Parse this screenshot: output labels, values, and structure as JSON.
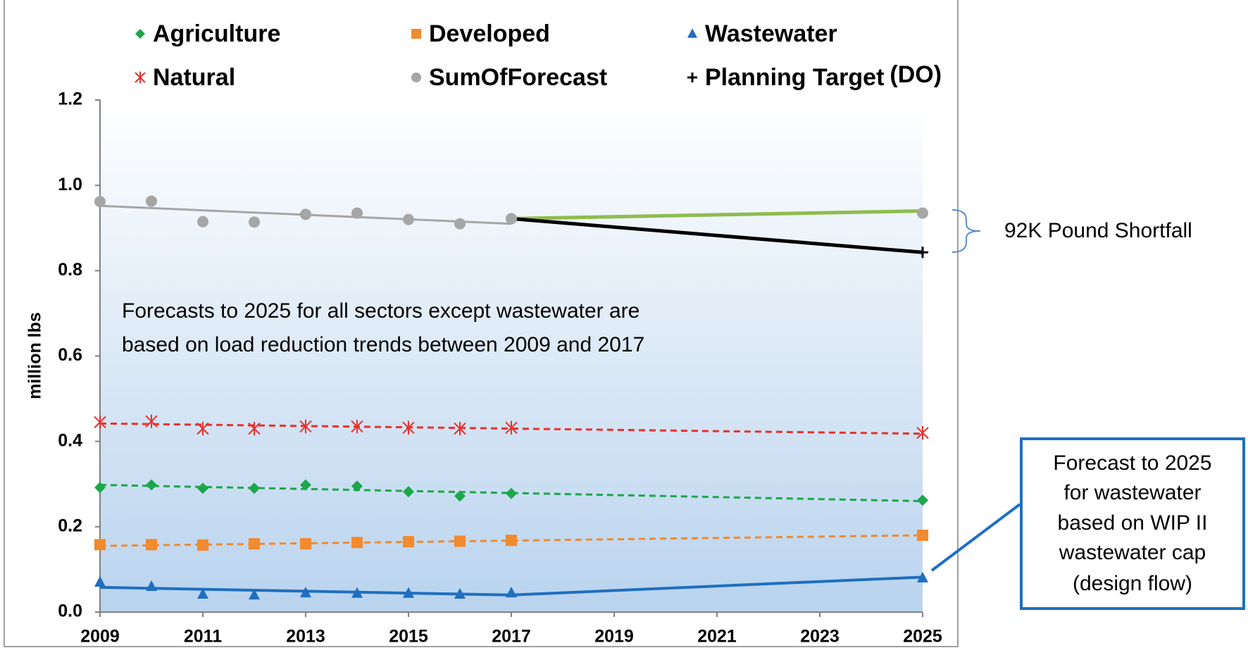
{
  "chart_data": {
    "type": "line",
    "y_label": "million lbs",
    "xlim": [
      2009,
      2025
    ],
    "xticks": [
      2009,
      2011,
      2013,
      2015,
      2017,
      2019,
      2021,
      2023,
      2025
    ],
    "ylim": [
      0,
      1.2
    ],
    "yticks": [
      {
        "value": 0,
        "label": "0.0"
      },
      {
        "value": 0.2,
        "label": "0.2"
      },
      {
        "value": 0.4,
        "label": "0.4"
      },
      {
        "value": 0.6,
        "label": "0.6"
      },
      {
        "value": 0.8,
        "label": "0.8"
      },
      {
        "value": 1.0,
        "label": "1.0"
      },
      {
        "value": 1.2,
        "label": "1.2"
      }
    ],
    "series": [
      {
        "name": "Agriculture",
        "color": "#1aa84a",
        "marker": "diamond",
        "x": [
          2009,
          2010,
          2011,
          2012,
          2013,
          2014,
          2015,
          2016,
          2017,
          2025
        ],
        "values": [
          0.292,
          0.298,
          0.29,
          0.29,
          0.298,
          0.295,
          0.282,
          0.272,
          0.278,
          0.262
        ]
      },
      {
        "name": "Developed",
        "color": "#f28a2e",
        "marker": "square",
        "x": [
          2009,
          2010,
          2011,
          2012,
          2013,
          2014,
          2015,
          2016,
          2017,
          2025
        ],
        "values": [
          0.158,
          0.158,
          0.157,
          0.16,
          0.16,
          0.163,
          0.165,
          0.166,
          0.168,
          0.18
        ]
      },
      {
        "name": "Wastewater",
        "color": "#1f6fc0",
        "marker": "triangle",
        "x": [
          2009,
          2010,
          2011,
          2012,
          2013,
          2014,
          2015,
          2016,
          2017,
          2025
        ],
        "values": [
          0.07,
          0.06,
          0.042,
          0.04,
          0.045,
          0.044,
          0.044,
          0.042,
          0.045,
          0.08
        ]
      },
      {
        "name": "Natural",
        "color": "#e8312b",
        "marker": "star",
        "x": [
          2009,
          2010,
          2011,
          2012,
          2013,
          2014,
          2015,
          2016,
          2017,
          2025
        ],
        "values": [
          0.445,
          0.447,
          0.43,
          0.43,
          0.435,
          0.435,
          0.432,
          0.43,
          0.432,
          0.42
        ]
      },
      {
        "name": "SumOfForecast",
        "color": "#a6a6a6",
        "marker": "circle",
        "x": [
          2009,
          2010,
          2011,
          2012,
          2013,
          2014,
          2015,
          2016,
          2017,
          2025
        ],
        "values": [
          0.962,
          0.963,
          0.915,
          0.914,
          0.932,
          0.935,
          0.92,
          0.91,
          0.922,
          0.935
        ]
      },
      {
        "name": "Planning Target",
        "color": "#000000",
        "marker": "plus",
        "x": [
          2025
        ],
        "values": [
          0.843
        ]
      }
    ],
    "trend_lines": [
      {
        "color": "#a6a6a6",
        "dashed": false,
        "width": 3,
        "x": [
          2009,
          2017
        ],
        "values": [
          0.952,
          0.91
        ]
      },
      {
        "color": "#8fbc4f",
        "dashed": false,
        "width": 5,
        "x": [
          2017,
          2025
        ],
        "values": [
          0.922,
          0.94
        ]
      },
      {
        "color": "#000000",
        "dashed": false,
        "width": 5,
        "x": [
          2017,
          2025
        ],
        "values": [
          0.922,
          0.843
        ]
      },
      {
        "color": "#e8312b",
        "dashed": true,
        "width": 3,
        "x": [
          2009,
          2025
        ],
        "values": [
          0.442,
          0.418
        ]
      },
      {
        "color": "#1aa84a",
        "dashed": true,
        "width": 3,
        "x": [
          2009,
          2025
        ],
        "values": [
          0.298,
          0.26
        ]
      },
      {
        "color": "#f28a2e",
        "dashed": true,
        "width": 3,
        "x": [
          2009,
          2025
        ],
        "values": [
          0.155,
          0.18
        ]
      },
      {
        "color": "#1f6fc0",
        "dashed": false,
        "width": 4,
        "x": [
          2009,
          2017,
          2025
        ],
        "values": [
          0.058,
          0.04,
          0.082
        ]
      }
    ],
    "legend_suffix": "(DO)",
    "annotations": {
      "note": [
        "Forecasts to 2025 for all sectors except wastewater are",
        "based on load reduction trends between 2009 and 2017"
      ],
      "shortfall": "92K Pound Shortfall",
      "box": [
        "Forecast to 2025",
        "for wastewater",
        "based on WIP II",
        "wastewater cap",
        "(design flow)"
      ]
    }
  }
}
